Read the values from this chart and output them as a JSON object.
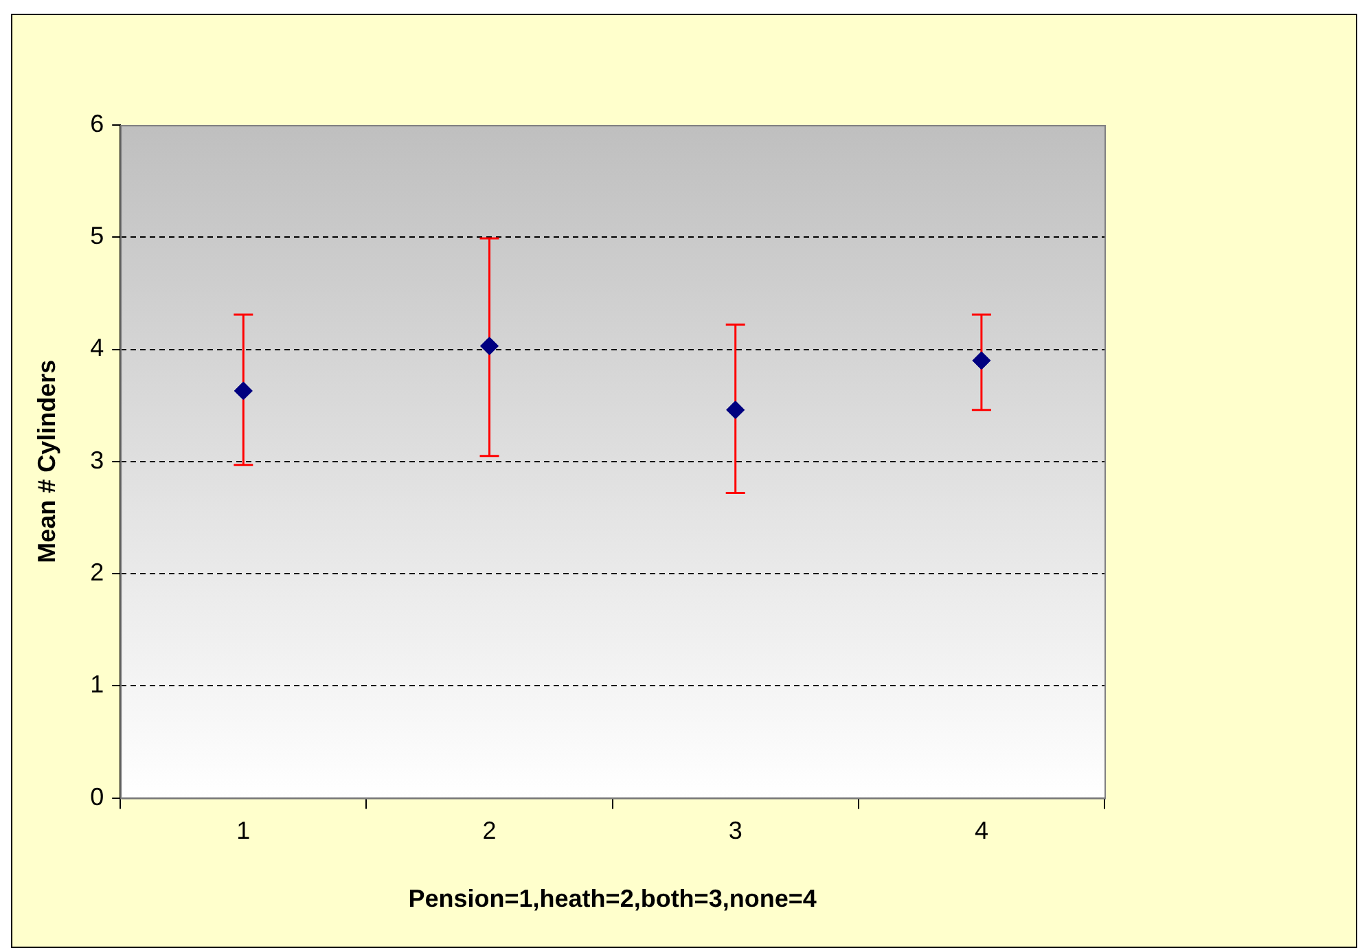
{
  "chart_data": {
    "type": "scatter",
    "xlabel": "Pension=1,heath=2,both=3,none=4",
    "ylabel": "Mean # Cylinders",
    "categories": [
      "1",
      "2",
      "3",
      "4"
    ],
    "series": [
      {
        "color": "#000080",
        "values": [
          3.63,
          4.03,
          3.46,
          3.9
        ],
        "errors": [
          [
            2.97,
            4.31
          ],
          [
            3.05,
            4.99
          ],
          [
            2.72,
            4.22
          ],
          [
            3.46,
            4.31
          ]
        ]
      }
    ],
    "ylim": [
      0,
      6
    ],
    "yticks": [
      0,
      1,
      2,
      3,
      4,
      5,
      6
    ],
    "grid": "y",
    "legend": false,
    "marker": "diamond"
  }
}
